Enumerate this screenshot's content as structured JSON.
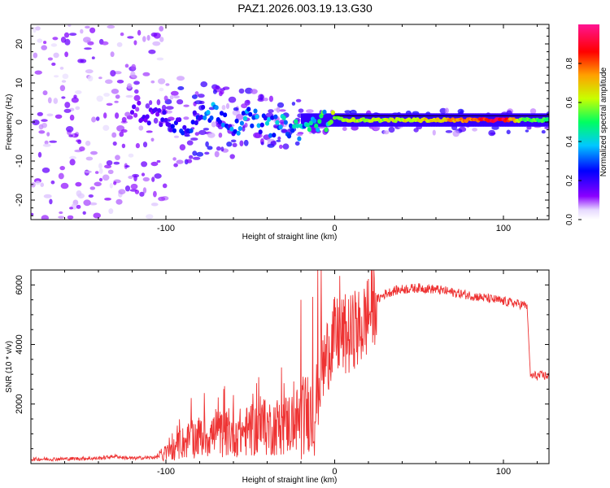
{
  "title": "PAZ1.2026.003.19.13.G30",
  "chart_data": [
    {
      "type": "heatmap",
      "name": "spectrogram",
      "xlabel": "Height of straight line (km)",
      "ylabel": "Frequency (Hz)",
      "xlim": [
        -180,
        127
      ],
      "ylim": [
        -25,
        25
      ],
      "xticks": [
        -100,
        0,
        100
      ],
      "xtick_labels": [
        "-100",
        "0",
        "100"
      ],
      "yticks": [
        -20,
        -10,
        0,
        10,
        20
      ],
      "ytick_labels": [
        "-20",
        "-10",
        "0",
        "10",
        "20"
      ],
      "colorbar": {
        "label": "Normalized spectral amplitude",
        "range": [
          0,
          1
        ],
        "ticks": [
          0.0,
          0.2,
          0.4,
          0.6,
          0.8
        ],
        "tick_labels": [
          "0.0",
          "0.2",
          "0.4",
          "0.6",
          "0.8"
        ],
        "colormap": "rainbow",
        "colors": [
          "#ffffff",
          "#8a00ff",
          "#0000ff",
          "#00c8ff",
          "#00ff60",
          "#c8ff00",
          "#ffa000",
          "#ff0000",
          "#ff1493"
        ]
      },
      "ridge": {
        "description": "dominant frequency near 0 Hz, noise spread widens below 0 km",
        "points": [
          {
            "x": -120,
            "y": 3,
            "amp": 0.15
          },
          {
            "x": -100,
            "y": 1,
            "amp": 0.2
          },
          {
            "x": -90,
            "y": -1,
            "amp": 0.25
          },
          {
            "x": -80,
            "y": 1,
            "amp": 0.3
          },
          {
            "x": -70,
            "y": 3,
            "amp": 0.35
          },
          {
            "x": -60,
            "y": -1,
            "amp": 0.3
          },
          {
            "x": -50,
            "y": 1,
            "amp": 0.35
          },
          {
            "x": -40,
            "y": -1,
            "amp": 0.35
          },
          {
            "x": -30,
            "y": -1,
            "amp": 0.4
          },
          {
            "x": -20,
            "y": -2,
            "amp": 0.4
          },
          {
            "x": -10,
            "y": 0,
            "amp": 0.5
          },
          {
            "x": 0,
            "y": 1,
            "amp": 0.55
          },
          {
            "x": 10,
            "y": 0.5,
            "amp": 0.65
          },
          {
            "x": 20,
            "y": 0.5,
            "amp": 0.6
          },
          {
            "x": 40,
            "y": 0.5,
            "amp": 0.65
          },
          {
            "x": 60,
            "y": 0.5,
            "amp": 0.7
          },
          {
            "x": 80,
            "y": 0.5,
            "amp": 0.8
          },
          {
            "x": 100,
            "y": 0.5,
            "amp": 0.95
          },
          {
            "x": 110,
            "y": 0.5,
            "amp": 0.6
          },
          {
            "x": 127,
            "y": 0.5,
            "amp": 0.5
          }
        ]
      }
    },
    {
      "type": "line",
      "name": "snr",
      "xlabel": "Height of straight line (km)",
      "ylabel": "SNR (10 * v/v)",
      "xlim": [
        -180,
        127
      ],
      "ylim": [
        0,
        6500
      ],
      "xticks": [
        -100,
        0,
        100
      ],
      "xtick_labels": [
        "-100",
        "0",
        "100"
      ],
      "yticks": [
        2000,
        4000,
        6000
      ],
      "ytick_labels": [
        "2000",
        "4000",
        "6000"
      ],
      "color": "#ee3333",
      "series": [
        {
          "name": "SNR",
          "x": [
            -180,
            -170,
            -160,
            -150,
            -140,
            -130,
            -125,
            -120,
            -110,
            -105,
            -100,
            -95,
            -90,
            -85,
            -80,
            -70,
            -60,
            -50,
            -40,
            -30,
            -25,
            -20,
            -15,
            -12,
            -10,
            -8,
            -5,
            -3,
            0,
            5,
            10,
            15,
            20,
            25,
            30,
            35,
            40,
            50,
            60,
            70,
            80,
            90,
            100,
            110,
            114,
            116,
            120,
            127
          ],
          "y": [
            150,
            150,
            160,
            170,
            180,
            250,
            200,
            180,
            200,
            220,
            350,
            500,
            700,
            800,
            900,
            1000,
            1000,
            1100,
            1200,
            1300,
            1400,
            1500,
            1800,
            1600,
            2500,
            3000,
            3500,
            4000,
            4200,
            4300,
            4300,
            4500,
            5000,
            5500,
            5700,
            5800,
            5850,
            5900,
            5850,
            5750,
            5650,
            5550,
            5450,
            5350,
            5300,
            2950,
            2950,
            2950
          ]
        }
      ],
      "spikes": [
        {
          "x": -85,
          "y": 2200
        },
        {
          "x": -60,
          "y": 2300
        },
        {
          "x": -45,
          "y": 2900
        },
        {
          "x": -30,
          "y": 2700
        },
        {
          "x": -20,
          "y": 5500
        },
        {
          "x": -13,
          "y": 5600
        },
        {
          "x": -10,
          "y": 6500
        },
        {
          "x": -8,
          "y": 6500
        },
        {
          "x": 3,
          "y": 6300
        },
        {
          "x": 12,
          "y": 5800
        },
        {
          "x": 20,
          "y": 6200
        }
      ]
    }
  ]
}
